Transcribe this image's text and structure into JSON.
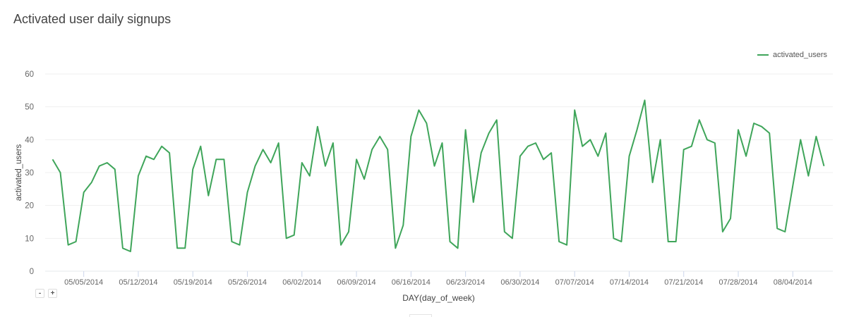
{
  "page": {
    "title": "Activated user daily signups",
    "zoom_out_label": "-",
    "zoom_in_label": "+"
  },
  "legend": {
    "items": [
      {
        "label": "activated_users",
        "color": "#3fa55a"
      }
    ]
  },
  "chart_data": {
    "type": "line",
    "title": "Activated user daily signups",
    "xlabel": "DAY(day_of_week)",
    "ylabel": "activated_users",
    "ylim": [
      0,
      60
    ],
    "yticks": [
      0,
      10,
      20,
      30,
      40,
      50,
      60
    ],
    "grid": true,
    "legend_position": "top-right",
    "x_start": "05/01/2014",
    "x_end": "08/08/2014",
    "xtick_labels": [
      "05/05/2014",
      "05/12/2014",
      "05/19/2014",
      "05/26/2014",
      "06/02/2014",
      "06/09/2014",
      "06/16/2014",
      "06/23/2014",
      "06/30/2014",
      "07/07/2014",
      "07/14/2014",
      "07/21/2014",
      "07/28/2014",
      "08/04/2014"
    ],
    "xtick_day_index": [
      4,
      11,
      18,
      25,
      32,
      39,
      46,
      53,
      60,
      67,
      74,
      81,
      88,
      95
    ],
    "series": [
      {
        "name": "activated_users",
        "color": "#3fa55a",
        "values": [
          34,
          30,
          8,
          9,
          24,
          27,
          32,
          33,
          31,
          7,
          6,
          29,
          35,
          34,
          38,
          36,
          7,
          7,
          31,
          38,
          23,
          34,
          34,
          9,
          8,
          24,
          32,
          37,
          33,
          39,
          10,
          11,
          33,
          29,
          44,
          32,
          39,
          8,
          12,
          34,
          28,
          37,
          41,
          37,
          7,
          14,
          41,
          49,
          45,
          32,
          39,
          9,
          7,
          43,
          21,
          36,
          42,
          46,
          12,
          10,
          35,
          38,
          39,
          34,
          36,
          9,
          8,
          49,
          38,
          40,
          35,
          42,
          10,
          9,
          35,
          43,
          52,
          27,
          40,
          9,
          9,
          37,
          38,
          46,
          40,
          39,
          12,
          16,
          43,
          35,
          45,
          44,
          42,
          13,
          12,
          26,
          40,
          29,
          41,
          32
        ]
      }
    ]
  }
}
